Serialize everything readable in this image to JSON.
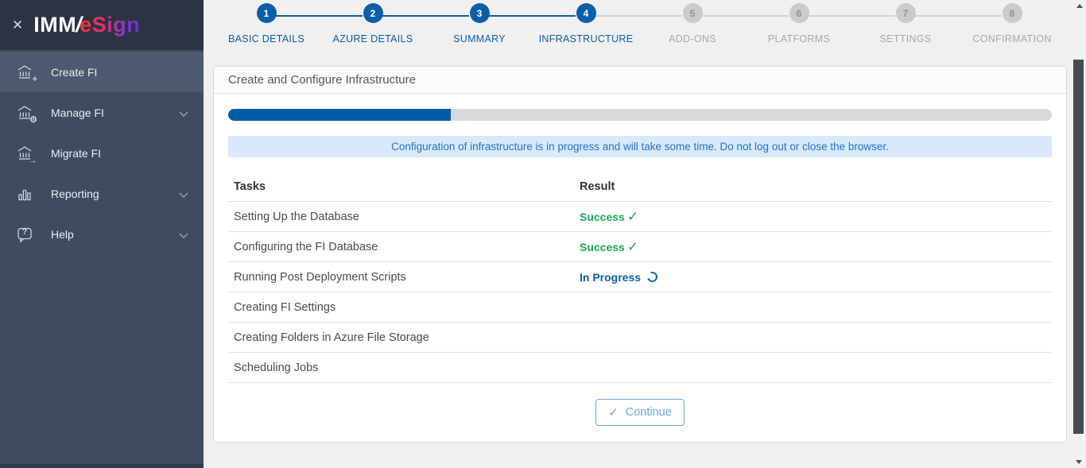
{
  "sidebar": {
    "logo": {
      "imm": "IMM",
      "slash": "/",
      "esign": "eSign"
    },
    "items": [
      {
        "label": "Create FI",
        "icon": "bank-plus-icon",
        "active": true,
        "chevron": false
      },
      {
        "label": "Manage FI",
        "icon": "bank-gear-icon",
        "active": false,
        "chevron": true
      },
      {
        "label": "Migrate FI",
        "icon": "bank-arrow-icon",
        "active": false,
        "chevron": false
      },
      {
        "label": "Reporting",
        "icon": "bar-chart-icon",
        "active": false,
        "chevron": true
      },
      {
        "label": "Help",
        "icon": "help-bubble-icon",
        "active": false,
        "chevron": true
      }
    ]
  },
  "icons": {
    "close": "✕",
    "check": "✓",
    "plus": "+",
    "gear": "⚙",
    "arrow": "→",
    "question": "?"
  },
  "stepper": {
    "steps": [
      {
        "num": "1",
        "label": "BASIC DETAILS",
        "state": "active"
      },
      {
        "num": "2",
        "label": "AZURE DETAILS",
        "state": "active"
      },
      {
        "num": "3",
        "label": "SUMMARY",
        "state": "active"
      },
      {
        "num": "4",
        "label": "INFRASTRUCTURE",
        "state": "active"
      },
      {
        "num": "5",
        "label": "ADD-ONS",
        "state": "inactive"
      },
      {
        "num": "6",
        "label": "PLATFORMS",
        "state": "inactive"
      },
      {
        "num": "7",
        "label": "SETTINGS",
        "state": "inactive"
      },
      {
        "num": "8",
        "label": "CONFIRMATION",
        "state": "inactive"
      }
    ]
  },
  "panel": {
    "title": "Create and Configure Infrastructure",
    "progress_percent": 27,
    "alert": "Configuration of infrastructure is in progress and will take some time. Do not log out or close the browser.",
    "table": {
      "headers": {
        "tasks": "Tasks",
        "result": "Result"
      },
      "rows": [
        {
          "task": "Setting Up the Database",
          "result": "Success",
          "status": "success"
        },
        {
          "task": "Configuring the FI Database",
          "result": "Success",
          "status": "success"
        },
        {
          "task": "Running Post Deployment Scripts",
          "result": "In Progress",
          "status": "in-progress"
        },
        {
          "task": "Creating FI Settings",
          "result": "",
          "status": "pending"
        },
        {
          "task": "Creating Folders in Azure File Storage",
          "result": "",
          "status": "pending"
        },
        {
          "task": "Scheduling Jobs",
          "result": "",
          "status": "pending"
        }
      ]
    },
    "continue_button": {
      "label": "Continue"
    }
  },
  "colors": {
    "sidebar_bg": "#404b5f",
    "sidebar_logo_bg": "#2c3345",
    "sidebar_active_bg": "#4d5970",
    "accent_blue": "#0b5ea8",
    "success_green": "#23a45c",
    "alert_bg": "#d7e9fb",
    "alert_text": "#2273c4",
    "progress_fill": "#005ca9",
    "progress_track": "#d9d9db",
    "brand_gradient_start": "#f0392f",
    "brand_gradient_end": "#5b36c8"
  }
}
